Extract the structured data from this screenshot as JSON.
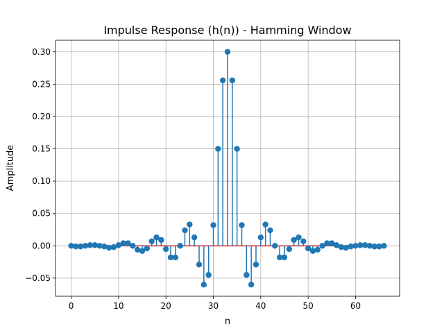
{
  "chart_data": {
    "type": "stem",
    "title": "Impulse Response (h(n)) - Hamming Window",
    "xlabel": "n",
    "ylabel": "Amplitude",
    "xlim": [
      -3.3,
      69.3
    ],
    "ylim": [
      -0.078,
      0.318
    ],
    "x_ticks": [
      0,
      10,
      20,
      30,
      40,
      50,
      60
    ],
    "x_tick_labels": [
      "0",
      "10",
      "20",
      "30",
      "40",
      "50",
      "60"
    ],
    "y_ticks": [
      -0.05,
      0.0,
      0.05,
      0.1,
      0.15,
      0.2,
      0.25,
      0.3
    ],
    "y_tick_labels": [
      "−0.05",
      "0.00",
      "0.05",
      "0.10",
      "0.15",
      "0.20",
      "0.25",
      "0.30"
    ],
    "grid": true,
    "baseline": 0,
    "colors": {
      "stem": "#1f77b4",
      "baseline": "#d62728",
      "grid": "#b0b0b0"
    },
    "x": [
      0,
      1,
      2,
      3,
      4,
      5,
      6,
      7,
      8,
      9,
      10,
      11,
      12,
      13,
      14,
      15,
      16,
      17,
      18,
      19,
      20,
      21,
      22,
      23,
      24,
      25,
      26,
      27,
      28,
      29,
      30,
      31,
      32,
      33,
      34,
      35,
      36,
      37,
      38,
      39,
      40,
      41,
      42,
      43,
      44,
      45,
      46,
      47,
      48,
      49,
      50,
      51,
      52,
      53,
      54,
      55,
      56,
      57,
      58,
      59,
      60,
      61,
      62,
      63,
      64,
      65,
      66
    ],
    "values": [
      0.0,
      -0.001,
      -0.001,
      0.0,
      0.001,
      0.001,
      0.0,
      -0.001,
      -0.003,
      -0.002,
      0.001,
      0.004,
      0.004,
      0.0,
      -0.006,
      -0.008,
      -0.004,
      0.007,
      0.013,
      0.009,
      -0.005,
      -0.018,
      -0.018,
      0.0,
      0.024,
      0.033,
      0.013,
      -0.029,
      -0.06,
      -0.045,
      0.032,
      0.15,
      0.256,
      0.3,
      0.256,
      0.15,
      0.032,
      -0.045,
      -0.06,
      -0.029,
      0.013,
      0.033,
      0.024,
      0.0,
      -0.018,
      -0.018,
      -0.005,
      0.009,
      0.013,
      0.007,
      -0.004,
      -0.008,
      -0.006,
      0.0,
      0.004,
      0.004,
      0.001,
      -0.002,
      -0.003,
      -0.001,
      0.0,
      0.001,
      0.001,
      0.0,
      -0.001,
      -0.001,
      0.0
    ]
  }
}
